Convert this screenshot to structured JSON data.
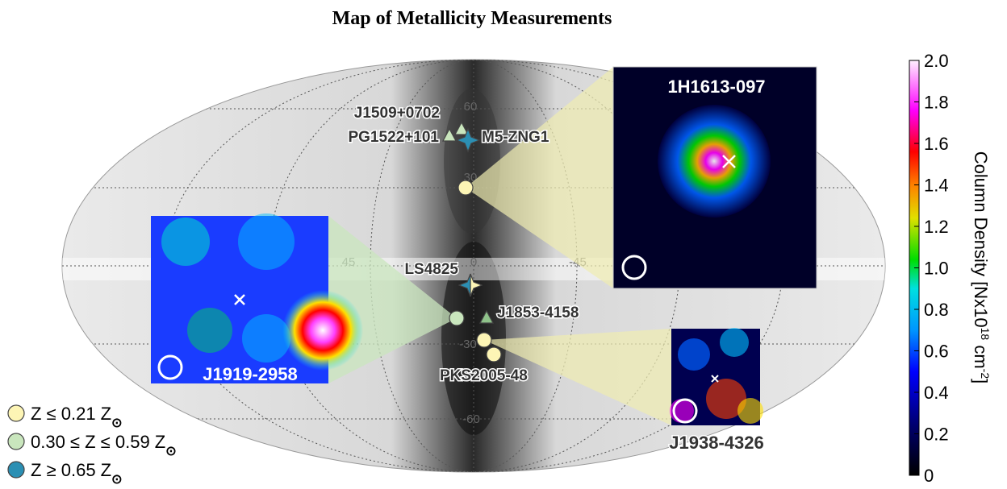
{
  "title": "Map of Metallicity Measurements",
  "map": {
    "grid_labels": [
      "60",
      "30",
      "0",
      "45",
      "-45",
      "-30",
      "-60"
    ]
  },
  "sightlines": [
    "J1509+0702",
    "PG1522+101",
    "M5-ZNG1",
    "LS4825",
    "J1853-4158",
    "PKS2005-48"
  ],
  "insets": [
    "1H1613-097",
    "J1919-2958",
    "J1938-4326"
  ],
  "colorbar": {
    "range": [
      0,
      2
    ],
    "ticks": [
      0,
      0.2,
      0.4,
      0.6,
      0.8,
      {
        "value": 1,
        "label": "1.0"
      },
      1.2,
      1.4,
      1.6,
      1.8,
      {
        "value": 2,
        "label": "2.0"
      }
    ],
    "label": [
      {
        "text": "Column Density [Nx10"
      },
      {
        "text": "18",
        "sup": true
      },
      {
        "text": " cm"
      },
      {
        "text": "-2",
        "sup": true
      },
      {
        "text": "]"
      }
    ]
  },
  "legend": [
    {
      "text": "Z ≤ 0.21 Z",
      "sub": "⊙",
      "color": "#fdf5b5"
    },
    {
      "text": "0.30 ≤ Z ≤ 0.59 Z",
      "sub": "⊙",
      "color": "#c9e6bd"
    },
    {
      "text": "Z ≥ 0.65 Z",
      "sub": "⊙",
      "color": "#2b8fb3"
    }
  ]
}
